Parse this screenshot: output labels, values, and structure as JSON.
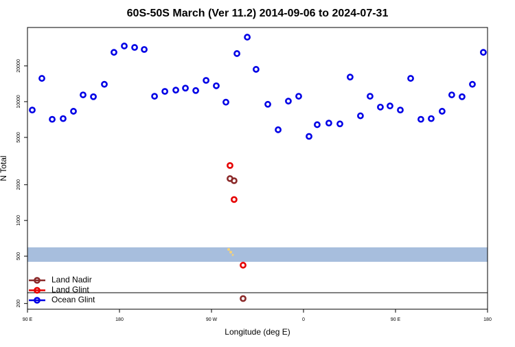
{
  "chart_data": {
    "type": "scatter",
    "title": "60S-50S March (Ver 11.2)   2014-09-06 to 2024-07-31",
    "x_label": "Longitude (deg E)",
    "y_label": "N Total",
    "log_y": true,
    "legend": "lower left",
    "xlim": [
      90,
      540
    ],
    "xticks": [
      {
        "value": 90,
        "label": "90 E"
      },
      180,
      {
        "value": 270,
        "label": "90 W"
      },
      {
        "value": 360,
        "label": "0"
      },
      {
        "value": 450,
        "label": "90 E"
      },
      {
        "value": 540,
        "label": "180"
      }
    ],
    "ylim": [
      179,
      42100
    ],
    "yticks": [
      200,
      500,
      1000,
      2000,
      5000,
      10000,
      20000
    ],
    "series": [
      {
        "name": "Land Nadir",
        "color": "#8b2a2a",
        "x": [
          288.1,
          292.1,
          300.9
        ],
        "values": [
          2250,
          2160,
          220
        ]
      },
      {
        "name": "Land Glint",
        "color": "#e60000",
        "x": [
          288.1,
          292.1,
          300.9
        ],
        "values": [
          2900,
          1500,
          420
        ]
      },
      {
        "name": "Ocean Glint",
        "color": "#0000e6",
        "x": [
          94.7,
          104.1,
          114.2,
          124.9,
          135.0,
          144.4,
          154.5,
          165.2,
          174.6,
          184.7,
          194.8,
          204.2,
          214.3,
          224.4,
          235.1,
          244.5,
          254.6,
          264.7,
          274.7,
          284.1,
          294.9,
          305.0,
          313.6,
          325.1,
          335.2,
          345.2,
          355.3,
          365.4,
          373.4,
          384.8,
          395.6,
          405.6,
          415.7,
          425.1,
          435.2,
          444.6,
          454.7,
          464.8,
          474.8,
          484.9,
          495.6,
          505.0,
          515.1,
          525.2,
          535.9
        ],
        "values": [
          8500,
          15700,
          7100,
          7200,
          8300,
          11400,
          11000,
          14000,
          26000,
          29400,
          28600,
          27500,
          11100,
          12200,
          12500,
          13000,
          12400,
          15100,
          13600,
          9900,
          25400,
          34900,
          18700,
          9500,
          5800,
          10100,
          11100,
          5100,
          6400,
          6600,
          6500,
          16100,
          7600,
          11100,
          9000,
          9200,
          8500,
          15700,
          7100,
          7200,
          8300,
          11400,
          11000,
          14000,
          26000
        ]
      }
    ]
  }
}
